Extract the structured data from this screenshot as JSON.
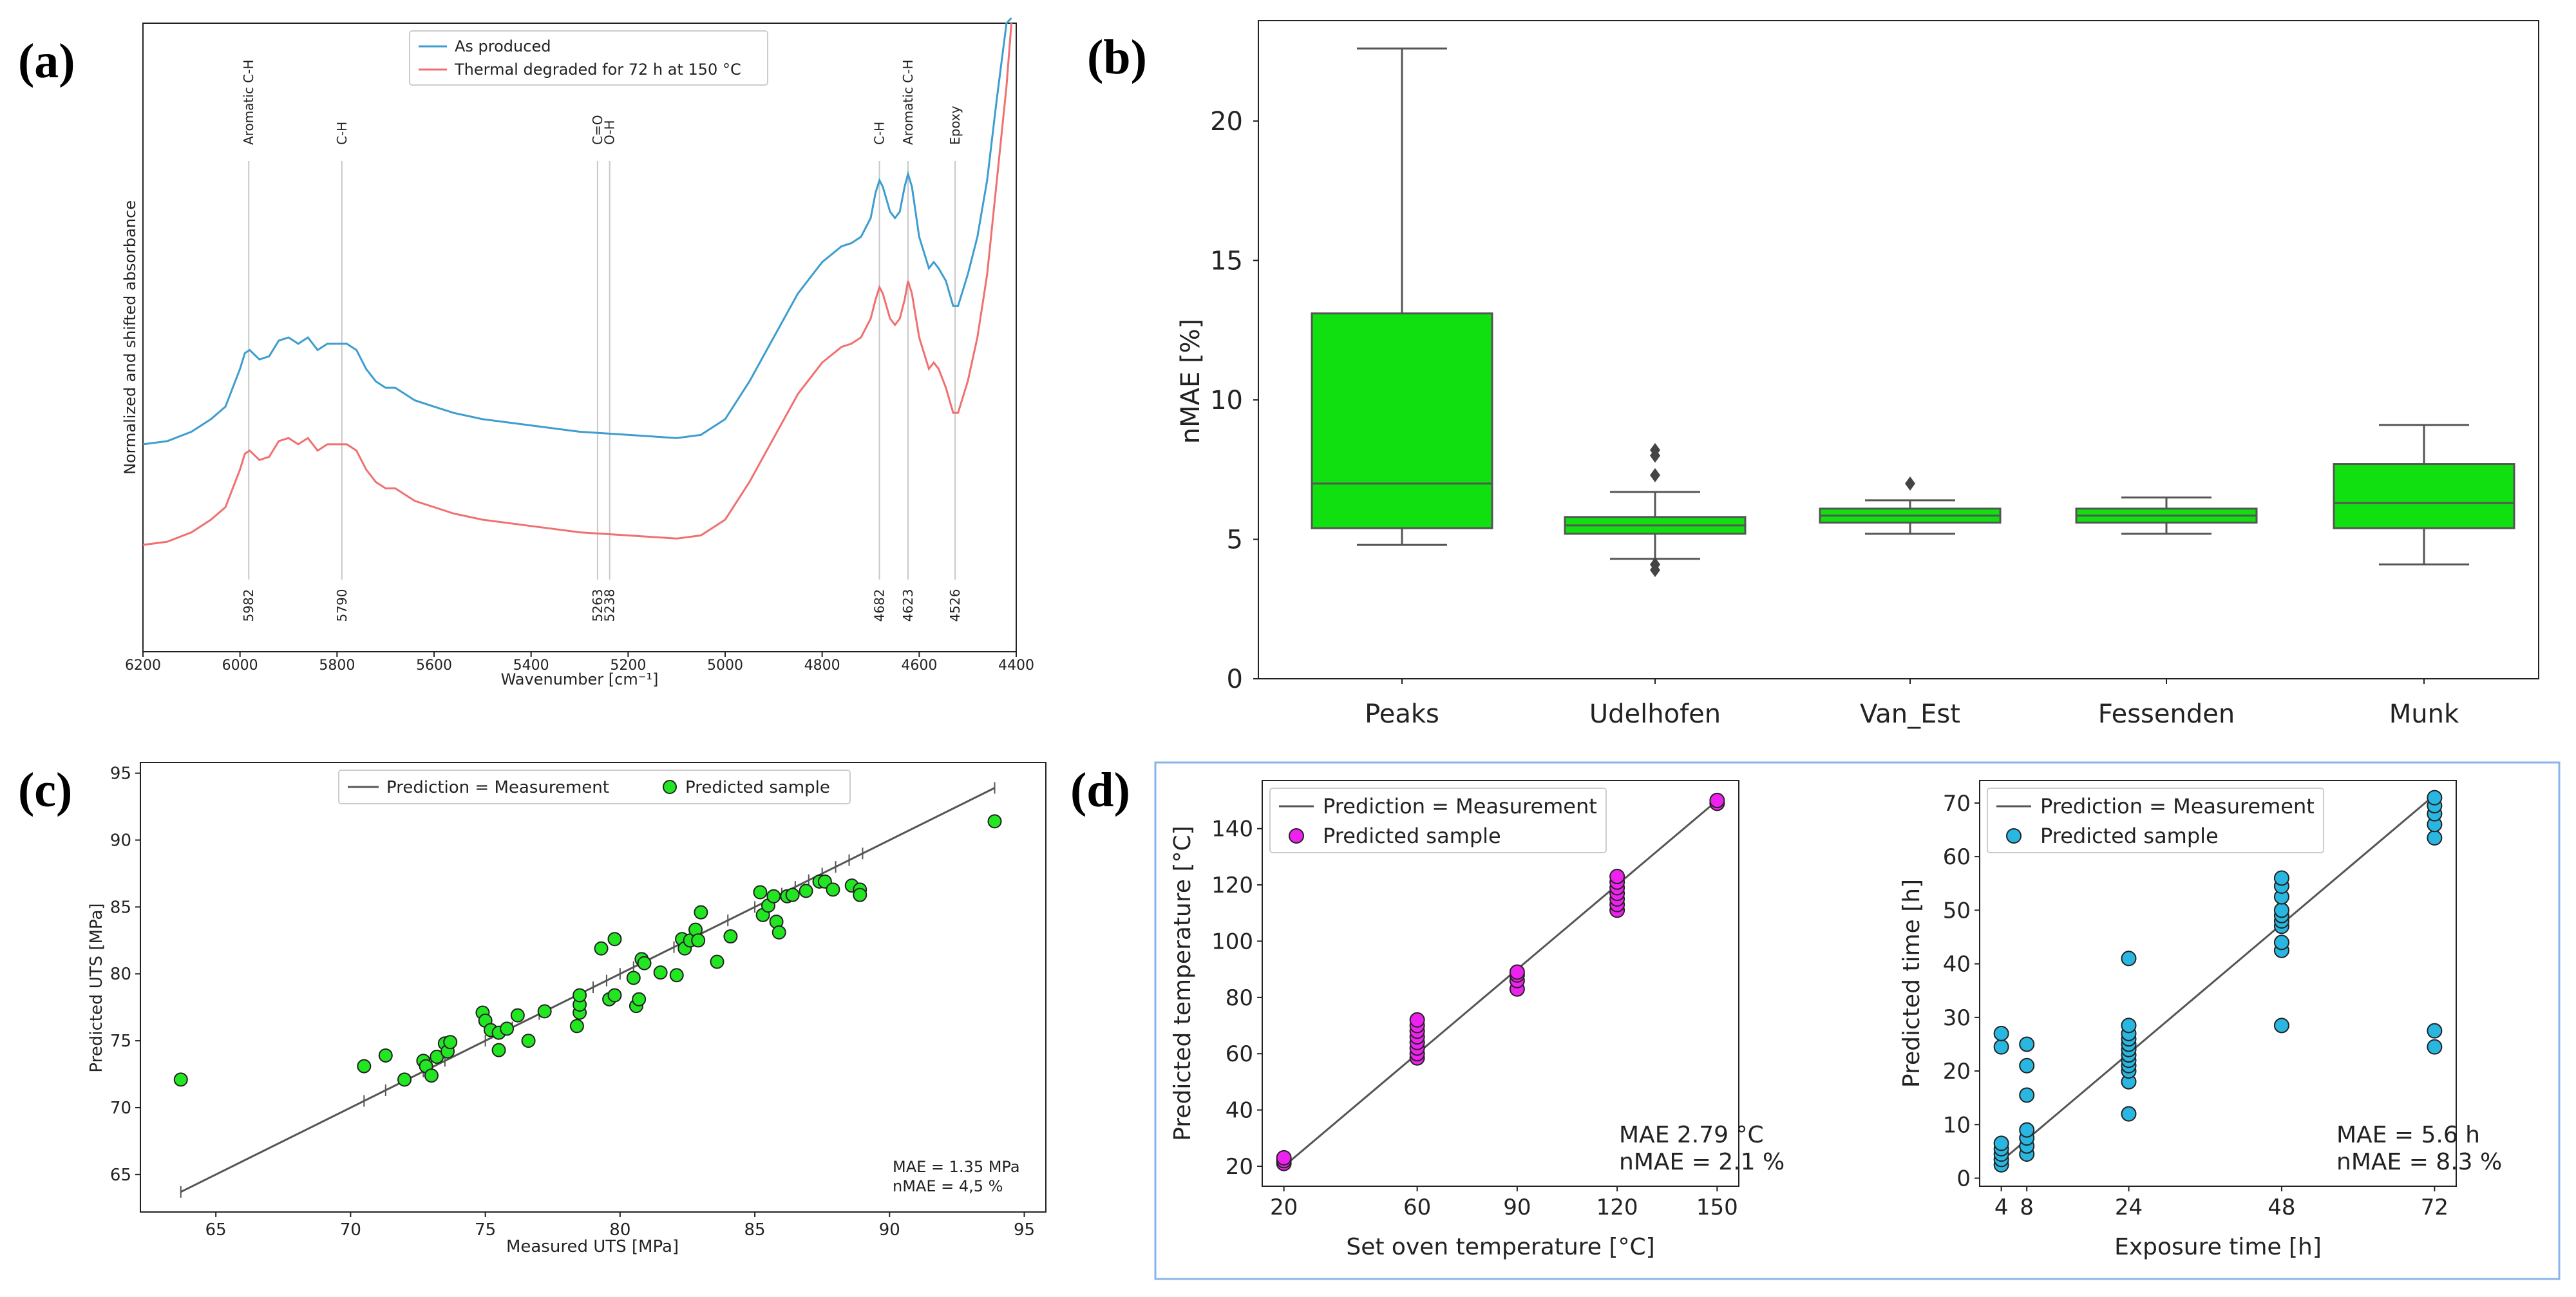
{
  "panel_labels": [
    "(a)",
    "(b)",
    "(c)",
    "(d)"
  ],
  "colors": {
    "as_produced": "#3d9dd0",
    "degraded": "#f07070",
    "box_fill": "#10e010",
    "scatter_c": "#22e622",
    "scatter_d1": "#ee22ee",
    "scatter_d2": "#29b6e0",
    "line": "#555555",
    "panel_d_border": "#8ab4e8"
  },
  "chart_data": [
    {
      "id": "a",
      "type": "line",
      "xlabel": "Wavenumber [cm⁻¹]",
      "ylabel": "Normalized and shifted absorbance",
      "xlim": [
        6200,
        4400
      ],
      "x_ticks": [
        "6200",
        "6000",
        "5800",
        "5600",
        "5400",
        "5200",
        "5000",
        "4800",
        "4600",
        "4400"
      ],
      "x_tick_values": [
        6200,
        6000,
        5800,
        5600,
        5400,
        5200,
        5000,
        4800,
        4600,
        4400
      ],
      "ylim": [
        0,
        1
      ],
      "legend": "top-center",
      "series": [
        {
          "name": "As produced",
          "x": [
            6200,
            6150,
            6100,
            6060,
            6030,
            6000,
            5990,
            5980,
            5960,
            5940,
            5920,
            5900,
            5880,
            5860,
            5840,
            5820,
            5800,
            5780,
            5760,
            5740,
            5720,
            5700,
            5680,
            5660,
            5640,
            5600,
            5560,
            5500,
            5400,
            5300,
            5200,
            5100,
            5050,
            5000,
            4950,
            4900,
            4850,
            4800,
            4760,
            4740,
            4720,
            4700,
            4690,
            4682,
            4675,
            4660,
            4650,
            4640,
            4630,
            4623,
            4615,
            4600,
            4580,
            4570,
            4560,
            4545,
            4530,
            4520,
            4500,
            4480,
            4460,
            4440,
            4420,
            4410
          ],
          "y": [
            0.33,
            0.335,
            0.35,
            0.37,
            0.39,
            0.45,
            0.475,
            0.48,
            0.465,
            0.47,
            0.495,
            0.5,
            0.49,
            0.5,
            0.48,
            0.49,
            0.49,
            0.49,
            0.48,
            0.45,
            0.43,
            0.42,
            0.42,
            0.41,
            0.4,
            0.39,
            0.38,
            0.37,
            0.36,
            0.35,
            0.345,
            0.34,
            0.345,
            0.37,
            0.43,
            0.5,
            0.57,
            0.62,
            0.645,
            0.65,
            0.66,
            0.69,
            0.73,
            0.75,
            0.74,
            0.7,
            0.69,
            0.7,
            0.74,
            0.76,
            0.74,
            0.66,
            0.61,
            0.62,
            0.61,
            0.59,
            0.55,
            0.55,
            0.6,
            0.66,
            0.75,
            0.88,
            1.0,
            1.05
          ]
        },
        {
          "name": "Thermal degraded for 72 h at 150 °C",
          "x": [
            6200,
            6150,
            6100,
            6060,
            6030,
            6000,
            5990,
            5980,
            5960,
            5940,
            5920,
            5900,
            5880,
            5860,
            5840,
            5820,
            5800,
            5780,
            5760,
            5740,
            5720,
            5700,
            5680,
            5660,
            5640,
            5600,
            5560,
            5500,
            5400,
            5300,
            5200,
            5100,
            5050,
            5000,
            4950,
            4900,
            4850,
            4800,
            4760,
            4740,
            4720,
            4700,
            4690,
            4682,
            4675,
            4660,
            4650,
            4640,
            4630,
            4623,
            4615,
            4600,
            4580,
            4570,
            4560,
            4545,
            4530,
            4520,
            4500,
            4480,
            4460,
            4440,
            4420,
            4410
          ],
          "y": [
            0.17,
            0.175,
            0.19,
            0.21,
            0.23,
            0.29,
            0.315,
            0.32,
            0.305,
            0.31,
            0.335,
            0.34,
            0.33,
            0.34,
            0.32,
            0.33,
            0.33,
            0.33,
            0.32,
            0.29,
            0.27,
            0.26,
            0.26,
            0.25,
            0.24,
            0.23,
            0.22,
            0.21,
            0.2,
            0.19,
            0.185,
            0.18,
            0.185,
            0.21,
            0.27,
            0.34,
            0.41,
            0.46,
            0.485,
            0.49,
            0.5,
            0.53,
            0.56,
            0.58,
            0.57,
            0.53,
            0.52,
            0.53,
            0.56,
            0.59,
            0.57,
            0.5,
            0.45,
            0.46,
            0.45,
            0.42,
            0.38,
            0.38,
            0.43,
            0.5,
            0.6,
            0.75,
            0.9,
            1.0
          ]
        }
      ],
      "annotations": [
        {
          "x": 5982,
          "top": "Aromatic C-H",
          "bottom": "5982"
        },
        {
          "x": 5790,
          "top": "C-H",
          "bottom": "5790"
        },
        {
          "x": 5263,
          "top": "C=O",
          "bottom": "5263"
        },
        {
          "x": 5238,
          "top": "O-H",
          "bottom": "5238"
        },
        {
          "x": 4682,
          "top": "C-H",
          "bottom": "4682"
        },
        {
          "x": 4623,
          "top": "Aromatic C-H",
          "bottom": "4623"
        },
        {
          "x": 4526,
          "top": "Epoxy",
          "bottom": "4526"
        }
      ]
    },
    {
      "id": "b",
      "type": "box",
      "ylabel": "nMAE [%]",
      "xlabel": "",
      "categories": [
        "Peaks",
        "Udelhofen",
        "Van_Est",
        "Fessenden",
        "Munk"
      ],
      "y_ticks": [
        "0",
        "5",
        "10",
        "15",
        "20"
      ],
      "y_tick_values": [
        0,
        5,
        10,
        15,
        20
      ],
      "ylim": [
        0,
        23.6
      ],
      "boxes": [
        {
          "whisker_low": 4.8,
          "q1": 5.4,
          "median": 7.0,
          "q3": 13.1,
          "whisker_high": 22.6,
          "outliers": []
        },
        {
          "whisker_low": 4.3,
          "q1": 5.2,
          "median": 5.5,
          "q3": 5.8,
          "whisker_high": 6.7,
          "outliers": [
            3.9,
            4.1,
            7.3,
            8.0,
            8.2
          ]
        },
        {
          "whisker_low": 5.2,
          "q1": 5.6,
          "median": 5.85,
          "q3": 6.1,
          "whisker_high": 6.4,
          "outliers": [
            7.0
          ]
        },
        {
          "whisker_low": 5.2,
          "q1": 5.6,
          "median": 5.85,
          "q3": 6.1,
          "whisker_high": 6.5,
          "outliers": []
        },
        {
          "whisker_low": 4.1,
          "q1": 5.4,
          "median": 6.3,
          "q3": 7.7,
          "whisker_high": 9.1,
          "outliers": []
        }
      ]
    },
    {
      "id": "c",
      "type": "scatter",
      "xlabel": "Measured UTS [MPa]",
      "ylabel": "Predicted UTS [MPa]",
      "xlim": [
        62.2,
        95.8
      ],
      "ylim": [
        62.2,
        95.8
      ],
      "x_ticks": [
        "65",
        "70",
        "75",
        "80",
        "85",
        "90",
        "95"
      ],
      "x_tick_values": [
        65,
        70,
        75,
        80,
        85,
        90,
        95
      ],
      "y_ticks": [
        "65",
        "70",
        "75",
        "80",
        "85",
        "90",
        "95"
      ],
      "y_tick_values": [
        65,
        70,
        75,
        80,
        85,
        90,
        95
      ],
      "legend": "top-center",
      "line_name": "Prediction = Measurement",
      "points_name": "Predicted sample",
      "line": [
        [
          63.7,
          63.7
        ],
        [
          93.9,
          93.9
        ]
      ],
      "line_ticks": [
        63.7,
        70.5,
        71.3,
        72.0,
        72.7,
        73.0,
        73.5,
        75.0,
        75.5,
        76.0,
        77.0,
        78.5,
        79.0,
        79.5,
        80.0,
        80.5,
        81.0,
        82.0,
        82.5,
        83.0,
        84.0,
        85.0,
        85.5,
        86.0,
        86.5,
        87.0,
        87.5,
        88.0,
        88.5,
        89.0,
        93.9
      ],
      "points": [
        [
          63.7,
          72.1
        ],
        [
          70.5,
          73.1
        ],
        [
          71.3,
          73.9
        ],
        [
          72.0,
          72.1
        ],
        [
          72.7,
          73.5
        ],
        [
          72.8,
          73.1
        ],
        [
          73.0,
          72.4
        ],
        [
          73.2,
          73.8
        ],
        [
          73.5,
          74.8
        ],
        [
          73.6,
          74.2
        ],
        [
          73.7,
          74.9
        ],
        [
          74.9,
          77.1
        ],
        [
          75.0,
          76.5
        ],
        [
          75.2,
          75.8
        ],
        [
          75.5,
          74.3
        ],
        [
          75.5,
          75.6
        ],
        [
          75.8,
          75.9
        ],
        [
          76.2,
          76.9
        ],
        [
          76.6,
          75.0
        ],
        [
          77.2,
          77.2
        ],
        [
          78.4,
          76.1
        ],
        [
          78.5,
          77.1
        ],
        [
          78.5,
          77.7
        ],
        [
          78.5,
          78.4
        ],
        [
          79.3,
          81.9
        ],
        [
          79.6,
          78.1
        ],
        [
          79.8,
          82.6
        ],
        [
          79.8,
          78.4
        ],
        [
          80.5,
          79.7
        ],
        [
          80.6,
          77.6
        ],
        [
          80.7,
          78.1
        ],
        [
          80.8,
          81.1
        ],
        [
          80.9,
          80.8
        ],
        [
          81.5,
          80.1
        ],
        [
          82.1,
          79.9
        ],
        [
          82.3,
          82.6
        ],
        [
          82.4,
          81.9
        ],
        [
          82.6,
          82.5
        ],
        [
          82.8,
          83.3
        ],
        [
          82.9,
          82.5
        ],
        [
          83.0,
          84.6
        ],
        [
          83.6,
          80.9
        ],
        [
          84.1,
          82.8
        ],
        [
          85.2,
          86.1
        ],
        [
          85.3,
          84.4
        ],
        [
          85.5,
          85.1
        ],
        [
          85.7,
          85.8
        ],
        [
          85.8,
          83.9
        ],
        [
          85.9,
          83.1
        ],
        [
          86.2,
          85.8
        ],
        [
          86.4,
          85.9
        ],
        [
          86.9,
          86.2
        ],
        [
          87.4,
          86.9
        ],
        [
          87.6,
          86.9
        ],
        [
          87.9,
          86.3
        ],
        [
          88.6,
          86.6
        ],
        [
          88.9,
          86.3
        ],
        [
          88.9,
          85.9
        ],
        [
          93.9,
          91.4
        ]
      ],
      "stats": [
        "MAE    = 1.35 MPa",
        "nMAE = 4,5 %"
      ]
    },
    {
      "id": "d1",
      "type": "scatter",
      "xlabel": "Set oven temperature [°C]",
      "ylabel": "Predicted temperature [°C]",
      "xlim": [
        13.5,
        156.5
      ],
      "ylim": [
        12.9,
        157.1
      ],
      "x_ticks": [
        "20",
        "60",
        "90",
        "120",
        "150"
      ],
      "x_tick_values": [
        20,
        60,
        90,
        120,
        150
      ],
      "y_ticks": [
        "20",
        "40",
        "60",
        "80",
        "100",
        "120",
        "140"
      ],
      "y_tick_values": [
        20,
        40,
        60,
        80,
        100,
        120,
        140
      ],
      "legend": "top-left",
      "line_name": "Prediction = Measurement",
      "points_name": "Predicted sample",
      "line": [
        [
          20,
          20
        ],
        [
          150,
          150
        ]
      ],
      "points": [
        [
          20,
          21
        ],
        [
          20,
          22
        ],
        [
          20,
          23
        ],
        [
          60,
          58.5
        ],
        [
          60,
          60
        ],
        [
          60,
          62
        ],
        [
          60,
          64
        ],
        [
          60,
          66
        ],
        [
          60,
          68
        ],
        [
          60,
          70
        ],
        [
          60,
          72
        ],
        [
          90,
          83
        ],
        [
          90,
          86
        ],
        [
          90,
          88
        ],
        [
          90,
          89
        ],
        [
          120,
          111
        ],
        [
          120,
          113
        ],
        [
          120,
          115
        ],
        [
          120,
          117
        ],
        [
          120,
          119
        ],
        [
          120,
          121
        ],
        [
          120,
          123
        ],
        [
          150,
          149
        ],
        [
          150,
          150
        ]
      ],
      "stats": [
        "MAE    2.79 °C",
        "nMAE = 2.1 %"
      ]
    },
    {
      "id": "d2",
      "type": "scatter",
      "xlabel": "Exposure time [h]",
      "ylabel": "Predicted time [h]",
      "xlim": [
        0.6,
        75.4
      ],
      "ylim": [
        -1.5,
        74.2
      ],
      "x_ticks": [
        "4",
        "8",
        "24",
        "48",
        "72"
      ],
      "x_tick_values": [
        4,
        8,
        24,
        48,
        72
      ],
      "y_ticks": [
        "0",
        "10",
        "20",
        "30",
        "40",
        "50",
        "60",
        "70"
      ],
      "y_tick_values": [
        0,
        10,
        20,
        30,
        40,
        50,
        60,
        70
      ],
      "legend": "top-left",
      "line_name": "Prediction = Measurement",
      "points_name": "Predicted sample",
      "line": [
        [
          4,
          3.2
        ],
        [
          72,
          71.5
        ]
      ],
      "points": [
        [
          4,
          2.5
        ],
        [
          4,
          3.5
        ],
        [
          4,
          4.5
        ],
        [
          4,
          5.5
        ],
        [
          4,
          6.5
        ],
        [
          4,
          24.5
        ],
        [
          4,
          27
        ],
        [
          8,
          4.5
        ],
        [
          8,
          6
        ],
        [
          8,
          7.5
        ],
        [
          8,
          9
        ],
        [
          8,
          15.5
        ],
        [
          8,
          21
        ],
        [
          8,
          25
        ],
        [
          24,
          12
        ],
        [
          24,
          18
        ],
        [
          24,
          20
        ],
        [
          24,
          21
        ],
        [
          24,
          22
        ],
        [
          24,
          23
        ],
        [
          24,
          24
        ],
        [
          24,
          25
        ],
        [
          24,
          26
        ],
        [
          24,
          27
        ],
        [
          24,
          28.5
        ],
        [
          24,
          41
        ],
        [
          48,
          28.5
        ],
        [
          48,
          42.5
        ],
        [
          48,
          44
        ],
        [
          48,
          47
        ],
        [
          48,
          48
        ],
        [
          48,
          49
        ],
        [
          48,
          50
        ],
        [
          48,
          52.5
        ],
        [
          48,
          54.5
        ],
        [
          48,
          56
        ],
        [
          72,
          24.5
        ],
        [
          72,
          27.5
        ],
        [
          72,
          63.5
        ],
        [
          72,
          66
        ],
        [
          72,
          68
        ],
        [
          72,
          69.5
        ],
        [
          72,
          71
        ]
      ],
      "stats": [
        "MAE    = 5.6 h",
        "nMAE = 8.3 %"
      ]
    }
  ]
}
